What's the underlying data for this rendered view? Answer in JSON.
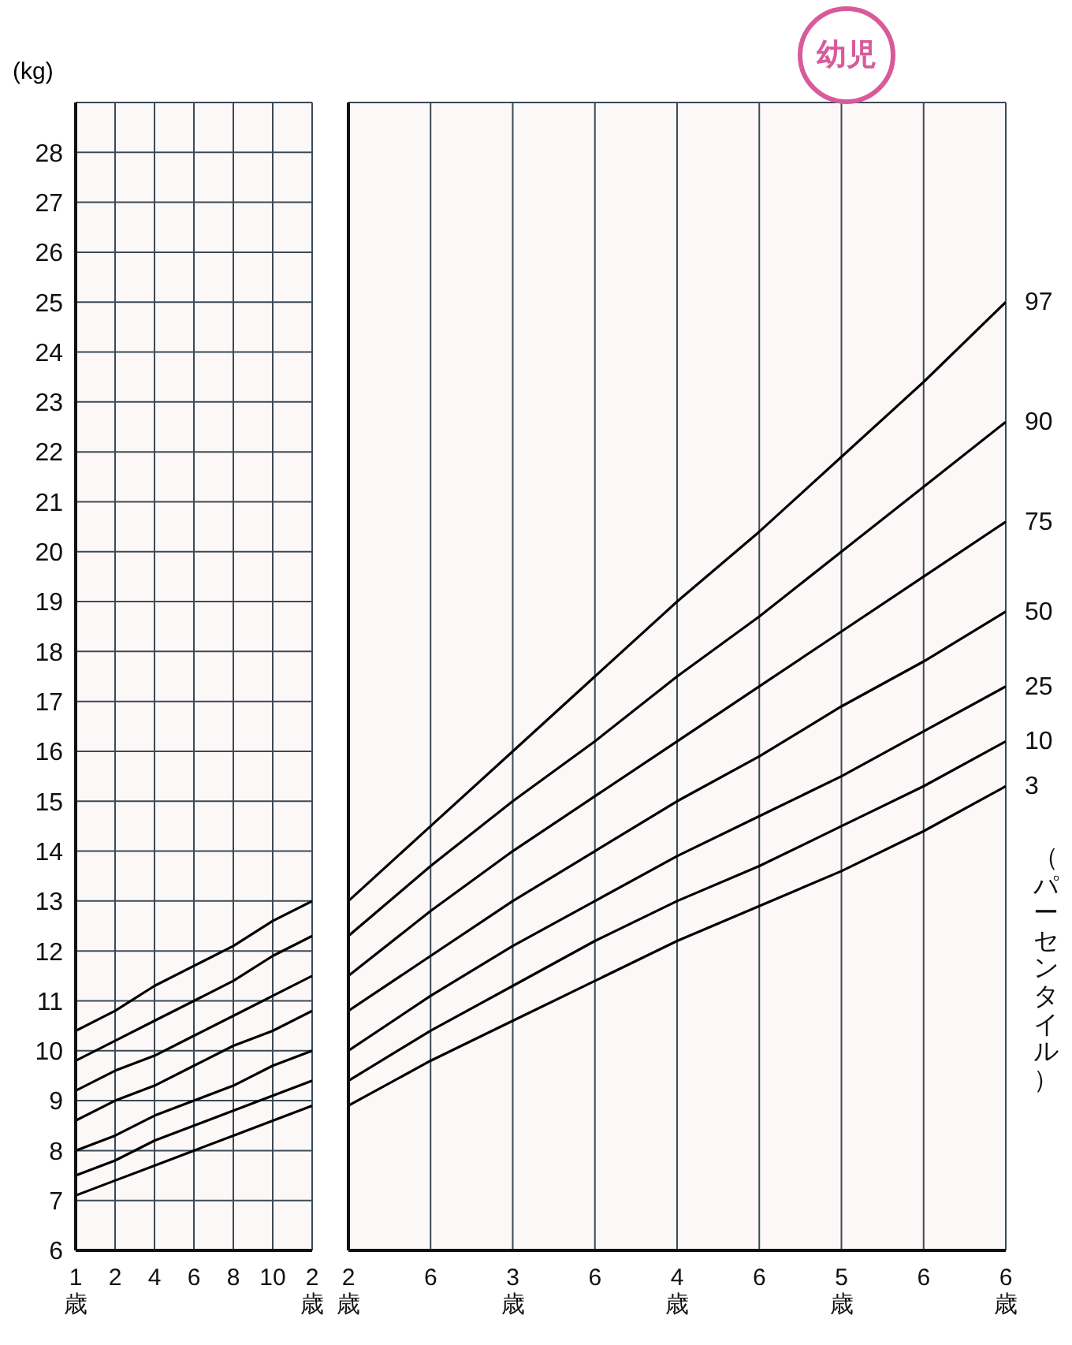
{
  "chart_data": [
    {
      "type": "line",
      "ylabel": "(kg)",
      "categories": [
        "1\n歳",
        "2",
        "4",
        "6",
        "8",
        "10",
        "2\n歳"
      ],
      "ylim": [
        6,
        29
      ],
      "yticks": [
        6,
        7,
        8,
        9,
        10,
        11,
        12,
        13,
        14,
        15,
        16,
        17,
        18,
        19,
        20,
        21,
        22,
        23,
        24,
        25,
        26,
        27,
        28
      ],
      "grid": true,
      "marker": "none",
      "line_style": "solid",
      "series": [
        {
          "color": "#000000",
          "values": [
            10.4,
            10.8,
            11.3,
            11.7,
            12.1,
            12.6,
            13.0
          ]
        },
        {
          "color": "#000000",
          "values": [
            9.8,
            10.2,
            10.6,
            11.0,
            11.4,
            11.9,
            12.3
          ]
        },
        {
          "color": "#000000",
          "values": [
            9.2,
            9.6,
            9.9,
            10.3,
            10.7,
            11.1,
            11.5
          ]
        },
        {
          "color": "#000000",
          "values": [
            8.6,
            9.0,
            9.3,
            9.7,
            10.1,
            10.4,
            10.8
          ]
        },
        {
          "color": "#000000",
          "values": [
            8.0,
            8.3,
            8.7,
            9.0,
            9.3,
            9.7,
            10.0
          ]
        },
        {
          "color": "#000000",
          "values": [
            7.5,
            7.8,
            8.2,
            8.5,
            8.8,
            9.1,
            9.4
          ]
        },
        {
          "color": "#000000",
          "values": [
            7.1,
            7.4,
            7.7,
            8.0,
            8.3,
            8.6,
            8.9
          ]
        }
      ]
    },
    {
      "type": "line",
      "title": "幼児",
      "categories": [
        "2\n歳",
        "6",
        "3\n歳",
        "6",
        "4\n歳",
        "6",
        "5\n歳",
        "6",
        "6\n歳"
      ],
      "ylim": [
        6,
        29
      ],
      "yticks": [
        6,
        7,
        8,
        9,
        10,
        11,
        12,
        13,
        14,
        15,
        16,
        17,
        18,
        19,
        20,
        21,
        22,
        23,
        24,
        25,
        26,
        27,
        28
      ],
      "tick_labels": "x",
      "grid": true,
      "marker": "none",
      "line_style": "solid",
      "annotations": [
        "（パーセンタイル）"
      ],
      "series": [
        {
          "name": "97",
          "color": "#000000",
          "values": [
            13.0,
            14.5,
            16.0,
            17.5,
            19.0,
            20.4,
            21.9,
            23.4,
            25.0
          ]
        },
        {
          "name": "90",
          "color": "#000000",
          "values": [
            12.3,
            13.7,
            15.0,
            16.2,
            17.5,
            18.7,
            20.0,
            21.3,
            22.6
          ]
        },
        {
          "name": "75",
          "color": "#000000",
          "values": [
            11.5,
            12.8,
            14.0,
            15.1,
            16.2,
            17.3,
            18.4,
            19.5,
            20.6
          ]
        },
        {
          "name": "50",
          "color": "#000000",
          "values": [
            10.8,
            11.9,
            13.0,
            14.0,
            15.0,
            15.9,
            16.9,
            17.8,
            18.8
          ]
        },
        {
          "name": "25",
          "color": "#000000",
          "values": [
            10.0,
            11.1,
            12.1,
            13.0,
            13.9,
            14.7,
            15.5,
            16.4,
            17.3
          ]
        },
        {
          "name": "10",
          "color": "#000000",
          "values": [
            9.4,
            10.4,
            11.3,
            12.2,
            13.0,
            13.7,
            14.5,
            15.3,
            16.2
          ]
        },
        {
          "name": "3",
          "color": "#000000",
          "values": [
            8.9,
            9.8,
            10.6,
            11.4,
            12.2,
            12.9,
            13.6,
            14.4,
            15.3
          ]
        }
      ]
    }
  ]
}
